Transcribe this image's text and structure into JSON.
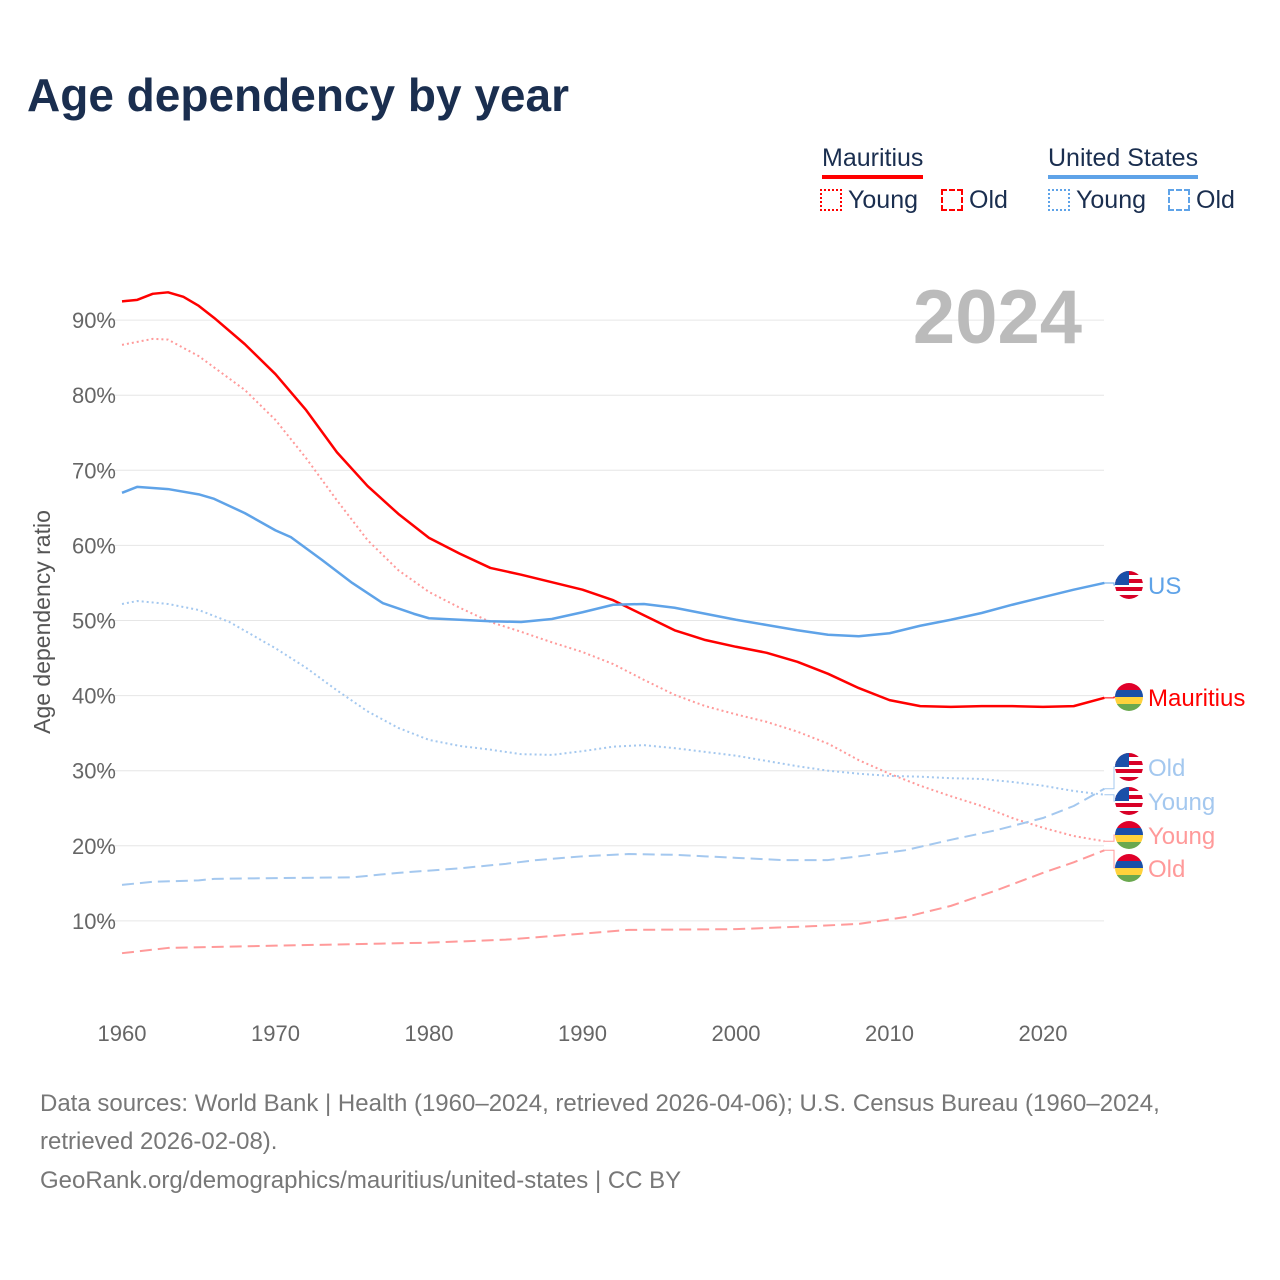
{
  "title": "Age dependency by year",
  "legend": {
    "groups": [
      {
        "name": "Mauritius",
        "color": "#ff0000",
        "items": [
          "Young",
          "Old"
        ]
      },
      {
        "name": "United States",
        "color": "#5fa3e8",
        "items": [
          "Young",
          "Old"
        ]
      }
    ]
  },
  "year_watermark": "2024",
  "end_labels": {
    "us": "US",
    "mauritius": "Mauritius",
    "us_old": "Old",
    "us_young": "Young",
    "mu_young": "Young",
    "mu_old": "Old"
  },
  "footer": {
    "line1": "Data sources: World Bank | Health (1960–2024, retrieved 2026-04-06); U.S. Census Bureau (1960–2024,",
    "line2": "retrieved 2026-02-08).",
    "line3": "GeoRank.org/demographics/mauritius/united-states | CC BY"
  },
  "chart_data": {
    "type": "line",
    "title": "Age dependency by year",
    "xlabel": "",
    "ylabel": "Age dependency ratio",
    "xlim": [
      1960,
      2024
    ],
    "ylim": [
      0,
      100
    ],
    "x_ticks": [
      "1960",
      "1970",
      "1980",
      "1990",
      "2000",
      "2010",
      "2020"
    ],
    "y_ticks": [
      "10%",
      "20%",
      "30%",
      "40%",
      "50%",
      "60%",
      "70%",
      "80%",
      "90%"
    ],
    "series": [
      {
        "id": "mu_total",
        "name": "Mauritius",
        "color": "#ff0000",
        "dash": "solid",
        "points": [
          [
            1960,
            92.5
          ],
          [
            1961,
            92.7
          ],
          [
            1962,
            93.5
          ],
          [
            1963,
            93.7
          ],
          [
            1964,
            93.1
          ],
          [
            1965,
            91.9
          ],
          [
            1966,
            90.3
          ],
          [
            1968,
            86.8
          ],
          [
            1970,
            82.8
          ],
          [
            1972,
            78
          ],
          [
            1974,
            72.4
          ],
          [
            1976,
            67.9
          ],
          [
            1978,
            64.2
          ],
          [
            1980,
            61
          ],
          [
            1982,
            58.9
          ],
          [
            1984,
            57
          ],
          [
            1986,
            56.1
          ],
          [
            1988,
            55.1
          ],
          [
            1990,
            54.1
          ],
          [
            1992,
            52.7
          ],
          [
            1994,
            50.7
          ],
          [
            1996,
            48.7
          ],
          [
            1998,
            47.4
          ],
          [
            2000,
            46.5
          ],
          [
            2002,
            45.7
          ],
          [
            2004,
            44.5
          ],
          [
            2006,
            42.9
          ],
          [
            2008,
            41
          ],
          [
            2010,
            39.4
          ],
          [
            2012,
            38.6
          ],
          [
            2014,
            38.5
          ],
          [
            2016,
            38.6
          ],
          [
            2018,
            38.6
          ],
          [
            2020,
            38.5
          ],
          [
            2022,
            38.6
          ],
          [
            2024,
            39.7
          ]
        ]
      },
      {
        "id": "mu_young",
        "name": "Mauritius Young",
        "color": "#ff9a9a",
        "dash": "dotted",
        "points": [
          [
            1960,
            86.7
          ],
          [
            1962,
            87.5
          ],
          [
            1963,
            87.4
          ],
          [
            1965,
            85.2
          ],
          [
            1968,
            80.7
          ],
          [
            1970,
            76.7
          ],
          [
            1972,
            71.6
          ],
          [
            1974,
            66
          ],
          [
            1976,
            60.7
          ],
          [
            1978,
            56.7
          ],
          [
            1980,
            53.8
          ],
          [
            1982,
            51.7
          ],
          [
            1984,
            49.8
          ],
          [
            1986,
            48.5
          ],
          [
            1988,
            47.1
          ],
          [
            1990,
            45.8
          ],
          [
            1992,
            44.2
          ],
          [
            1994,
            42.1
          ],
          [
            1996,
            40.1
          ],
          [
            1998,
            38.6
          ],
          [
            2000,
            37.5
          ],
          [
            2002,
            36.5
          ],
          [
            2004,
            35.2
          ],
          [
            2006,
            33.6
          ],
          [
            2008,
            31.4
          ],
          [
            2010,
            29.6
          ],
          [
            2012,
            28
          ],
          [
            2014,
            26.6
          ],
          [
            2016,
            25.3
          ],
          [
            2018,
            23.7
          ],
          [
            2020,
            22.4
          ],
          [
            2022,
            21.3
          ],
          [
            2024,
            20.6
          ]
        ]
      },
      {
        "id": "mu_old",
        "name": "Mauritius Old",
        "color": "#ff9a9a",
        "dash": "dashed",
        "points": [
          [
            1960,
            5.7
          ],
          [
            1963,
            6.4
          ],
          [
            1970,
            6.7
          ],
          [
            1980,
            7.1
          ],
          [
            1985,
            7.5
          ],
          [
            1990,
            8.3
          ],
          [
            1993,
            8.8
          ],
          [
            2000,
            8.9
          ],
          [
            2005,
            9.3
          ],
          [
            2008,
            9.6
          ],
          [
            2011,
            10.5
          ],
          [
            2014,
            12
          ],
          [
            2017,
            14.1
          ],
          [
            2020,
            16.4
          ],
          [
            2022,
            17.8
          ],
          [
            2024,
            19.4
          ]
        ]
      },
      {
        "id": "us_total",
        "name": "US",
        "color": "#5fa3e8",
        "dash": "solid",
        "points": [
          [
            1960,
            67
          ],
          [
            1961,
            67.8
          ],
          [
            1963,
            67.5
          ],
          [
            1965,
            66.8
          ],
          [
            1966,
            66.2
          ],
          [
            1968,
            64.3
          ],
          [
            1970,
            62
          ],
          [
            1971,
            61.1
          ],
          [
            1973,
            58.1
          ],
          [
            1975,
            55
          ],
          [
            1977,
            52.3
          ],
          [
            1979,
            50.9
          ],
          [
            1980,
            50.3
          ],
          [
            1982,
            50.1
          ],
          [
            1984,
            49.9
          ],
          [
            1986,
            49.8
          ],
          [
            1988,
            50.2
          ],
          [
            1990,
            51.1
          ],
          [
            1992,
            52.1
          ],
          [
            1994,
            52.2
          ],
          [
            1996,
            51.7
          ],
          [
            1998,
            50.9
          ],
          [
            2000,
            50.1
          ],
          [
            2002,
            49.4
          ],
          [
            2004,
            48.7
          ],
          [
            2006,
            48.1
          ],
          [
            2008,
            47.9
          ],
          [
            2010,
            48.3
          ],
          [
            2012,
            49.3
          ],
          [
            2014,
            50.1
          ],
          [
            2016,
            51
          ],
          [
            2018,
            52.1
          ],
          [
            2020,
            53.1
          ],
          [
            2022,
            54.1
          ],
          [
            2024,
            55
          ]
        ]
      },
      {
        "id": "us_young",
        "name": "US Young",
        "color": "#a4c8ef",
        "dash": "dotted",
        "points": [
          [
            1960,
            52.2
          ],
          [
            1961,
            52.6
          ],
          [
            1963,
            52.2
          ],
          [
            1965,
            51.4
          ],
          [
            1967,
            49.8
          ],
          [
            1970,
            46.3
          ],
          [
            1972,
            43.7
          ],
          [
            1974,
            40.7
          ],
          [
            1976,
            37.9
          ],
          [
            1978,
            35.7
          ],
          [
            1980,
            34.1
          ],
          [
            1982,
            33.3
          ],
          [
            1984,
            32.8
          ],
          [
            1986,
            32.2
          ],
          [
            1988,
            32.1
          ],
          [
            1990,
            32.6
          ],
          [
            1992,
            33.2
          ],
          [
            1994,
            33.4
          ],
          [
            1996,
            33
          ],
          [
            1998,
            32.5
          ],
          [
            2000,
            32
          ],
          [
            2002,
            31.3
          ],
          [
            2004,
            30.6
          ],
          [
            2006,
            30
          ],
          [
            2008,
            29.6
          ],
          [
            2010,
            29.3
          ],
          [
            2012,
            29.2
          ],
          [
            2014,
            29
          ],
          [
            2016,
            28.9
          ],
          [
            2018,
            28.5
          ],
          [
            2020,
            28
          ],
          [
            2022,
            27.3
          ],
          [
            2024,
            26.8
          ]
        ]
      },
      {
        "id": "us_old",
        "name": "US Old",
        "color": "#a4c8ef",
        "dash": "dashed",
        "points": [
          [
            1960,
            14.8
          ],
          [
            1962,
            15.2
          ],
          [
            1965,
            15.4
          ],
          [
            1966,
            15.6
          ],
          [
            1970,
            15.7
          ],
          [
            1975,
            15.8
          ],
          [
            1978,
            16.4
          ],
          [
            1982,
            17
          ],
          [
            1985,
            17.6
          ],
          [
            1987,
            18.1
          ],
          [
            1990,
            18.6
          ],
          [
            1993,
            18.9
          ],
          [
            1996,
            18.8
          ],
          [
            1998,
            18.6
          ],
          [
            2000,
            18.4
          ],
          [
            2003,
            18.1
          ],
          [
            2006,
            18.1
          ],
          [
            2008,
            18.6
          ],
          [
            2011,
            19.4
          ],
          [
            2014,
            20.8
          ],
          [
            2017,
            22.1
          ],
          [
            2020,
            23.7
          ],
          [
            2022,
            25.3
          ],
          [
            2024,
            27.6
          ]
        ]
      }
    ]
  }
}
